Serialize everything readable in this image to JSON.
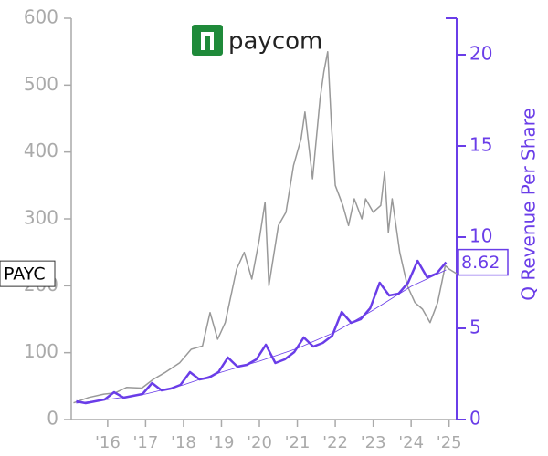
{
  "chart_data": {
    "type": "line",
    "logo": "paycom",
    "y2label": "Q Revenue Per Share",
    "xlim": [
      2015.04,
      2025.2
    ],
    "xticks": [
      {
        "value": 2016,
        "label": "'16"
      },
      {
        "value": 2017,
        "label": "'17"
      },
      {
        "value": 2018,
        "label": "'18"
      },
      {
        "value": 2019,
        "label": "'19"
      },
      {
        "value": 2020,
        "label": "'20"
      },
      {
        "value": 2021,
        "label": "'21"
      },
      {
        "value": 2022,
        "label": "'22"
      },
      {
        "value": 2023,
        "label": "'23"
      },
      {
        "value": 2024,
        "label": "'24"
      },
      {
        "value": 2025,
        "label": "'25"
      }
    ],
    "ylim": [
      0,
      600
    ],
    "yticks": [
      0,
      100,
      200,
      300,
      400,
      500,
      600
    ],
    "y2lim": [
      0,
      22
    ],
    "y2ticks": [
      0,
      5,
      10,
      15,
      20
    ],
    "series": [
      {
        "name": "PAYC",
        "color": "#999999",
        "x": [
          2015.1,
          2015.5,
          2015.9,
          2016.2,
          2016.5,
          2016.9,
          2017.2,
          2017.5,
          2017.9,
          2018.2,
          2018.5,
          2018.7,
          2018.9,
          2019.1,
          2019.4,
          2019.6,
          2019.8,
          2020.0,
          2020.15,
          2020.25,
          2020.5,
          2020.7,
          2020.9,
          2021.1,
          2021.2,
          2021.4,
          2021.6,
          2021.7,
          2021.8,
          2021.9,
          2022.0,
          2022.2,
          2022.35,
          2022.5,
          2022.7,
          2022.8,
          2023.0,
          2023.2,
          2023.3,
          2023.4,
          2023.5,
          2023.7,
          2023.9,
          2024.1,
          2024.3,
          2024.5,
          2024.7,
          2024.9,
          2025.0,
          2025.2
        ],
        "values": [
          25,
          33,
          38,
          40,
          48,
          47,
          60,
          70,
          85,
          105,
          110,
          160,
          120,
          145,
          225,
          250,
          210,
          270,
          325,
          200,
          290,
          310,
          380,
          420,
          460,
          360,
          480,
          520,
          550,
          440,
          350,
          320,
          290,
          330,
          300,
          330,
          310,
          320,
          370,
          280,
          330,
          250,
          200,
          175,
          165,
          145,
          175,
          230,
          225,
          218
        ]
      },
      {
        "name": "Q Revenue Per Share",
        "color": "#6a3de8",
        "axis": "y2",
        "x": [
          2015.17,
          2015.42,
          2015.67,
          2015.92,
          2016.17,
          2016.42,
          2016.67,
          2016.92,
          2017.17,
          2017.42,
          2017.67,
          2017.92,
          2018.17,
          2018.42,
          2018.67,
          2018.92,
          2019.17,
          2019.42,
          2019.67,
          2019.92,
          2020.17,
          2020.42,
          2020.67,
          2020.92,
          2021.17,
          2021.42,
          2021.67,
          2021.92,
          2022.17,
          2022.42,
          2022.67,
          2022.92,
          2023.17,
          2023.42,
          2023.67,
          2023.92,
          2024.17,
          2024.42,
          2024.67,
          2024.92
        ],
        "values": [
          1.0,
          0.9,
          1.0,
          1.1,
          1.5,
          1.2,
          1.3,
          1.4,
          2.0,
          1.6,
          1.7,
          1.9,
          2.6,
          2.2,
          2.3,
          2.6,
          3.4,
          2.9,
          3.0,
          3.3,
          4.1,
          3.1,
          3.3,
          3.7,
          4.5,
          4.0,
          4.2,
          4.6,
          5.9,
          5.3,
          5.5,
          6.1,
          7.5,
          6.8,
          6.9,
          7.5,
          8.7,
          7.8,
          8.0,
          8.62
        ]
      },
      {
        "color": "#6a3de8",
        "axis": "y2",
        "x": [
          2015.17,
          2016,
          2017,
          2018,
          2019,
          2020,
          2021,
          2022,
          2023,
          2024,
          2024.92
        ],
        "values": [
          0.9,
          1.1,
          1.4,
          1.9,
          2.6,
          3.2,
          3.9,
          4.8,
          6.0,
          7.3,
          8.2
        ]
      }
    ]
  }
}
